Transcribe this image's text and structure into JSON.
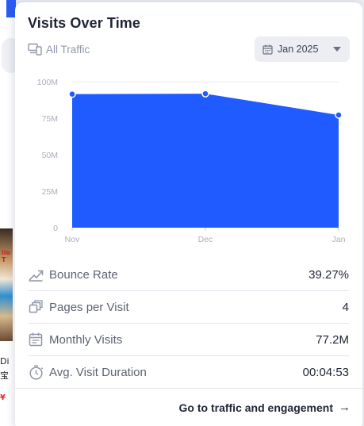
{
  "background": {
    "thumb_text": "lio\nT",
    "line1": "Di",
    "line2": "宝",
    "line3": "¥"
  },
  "card": {
    "title": "Visits Over Time",
    "traffic_filter": {
      "label": "All Traffic",
      "icon": "devices-icon"
    },
    "date_select": {
      "value": "Jan 2025",
      "icon": "calendar-icon"
    }
  },
  "chart_data": {
    "type": "area",
    "title": "",
    "xlabel": "",
    "ylabel": "",
    "categories": [
      "Nov",
      "Dec",
      "Jan"
    ],
    "values": [
      91.5,
      91.8,
      77.2
    ],
    "y_ticks": [
      "0",
      "25M",
      "50M",
      "75M",
      "100M"
    ],
    "y_tick_values": [
      0,
      25,
      50,
      75,
      100
    ],
    "ylim": [
      0,
      100
    ],
    "grid": true,
    "color": "#1f5bff"
  },
  "metrics": [
    {
      "label": "Bounce Rate",
      "value": "39.27%",
      "icon": "trend-icon"
    },
    {
      "label": "Pages per Visit",
      "value": "4",
      "icon": "pages-icon"
    },
    {
      "label": "Monthly Visits",
      "value": "77.2M",
      "icon": "calendar-icon"
    },
    {
      "label": "Avg. Visit Duration",
      "value": "00:04:53",
      "icon": "timer-icon"
    }
  ],
  "cta": {
    "label": "Go to traffic and engagement",
    "arrow": "→"
  }
}
